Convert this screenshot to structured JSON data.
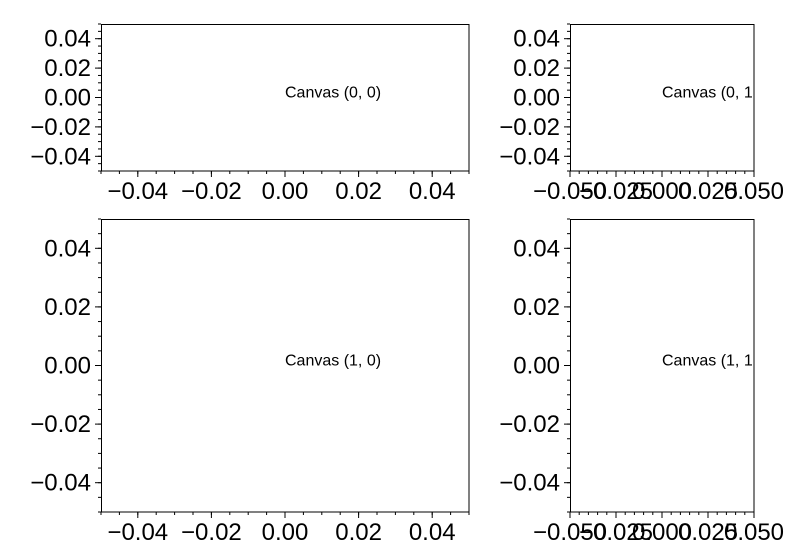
{
  "chart_data": [
    {
      "type": "scatter",
      "title": "",
      "xlabel": "",
      "ylabel": "",
      "xlim": [
        -0.05,
        0.05
      ],
      "ylim": [
        -0.05,
        0.05
      ],
      "grid": false,
      "series": [],
      "x_ticks": [
        -0.04,
        -0.02,
        0.0,
        0.02,
        0.04
      ],
      "x_tick_labels": [
        "−0.04",
        "−0.02",
        "0.00",
        "0.02",
        "0.04"
      ],
      "y_ticks": [
        -0.04,
        -0.02,
        0.0,
        0.02,
        0.04
      ],
      "y_tick_labels": [
        "−0.04",
        "−0.02",
        "0.00",
        "0.02",
        "0.04"
      ],
      "annotation": {
        "x": 0.0,
        "y": 0.0,
        "text": "Canvas (0, 0)"
      }
    },
    {
      "type": "scatter",
      "title": "",
      "xlabel": "",
      "ylabel": "",
      "xlim": [
        -0.05,
        0.05
      ],
      "ylim": [
        -0.05,
        0.05
      ],
      "grid": false,
      "series": [],
      "x_ticks": [
        -0.05,
        -0.025,
        0.0,
        0.025,
        0.05
      ],
      "x_tick_labels": [
        "−0.050",
        "−0.025",
        "0.000",
        "0.025",
        "0.050"
      ],
      "y_ticks": [
        -0.04,
        -0.02,
        0.0,
        0.02,
        0.04
      ],
      "y_tick_labels": [
        "−0.04",
        "−0.02",
        "0.00",
        "0.02",
        "0.04"
      ],
      "annotation": {
        "x": 0.0,
        "y": 0.0,
        "text": "Canvas (0, 1"
      }
    },
    {
      "type": "scatter",
      "title": "",
      "xlabel": "",
      "ylabel": "",
      "xlim": [
        -0.05,
        0.05
      ],
      "ylim": [
        -0.05,
        0.05
      ],
      "grid": false,
      "series": [],
      "x_ticks": [
        -0.04,
        -0.02,
        0.0,
        0.02,
        0.04
      ],
      "x_tick_labels": [
        "−0.04",
        "−0.02",
        "0.00",
        "0.02",
        "0.04"
      ],
      "y_ticks": [
        -0.04,
        -0.02,
        0.0,
        0.02,
        0.04
      ],
      "y_tick_labels": [
        "−0.04",
        "−0.02",
        "0.00",
        "0.02",
        "0.04"
      ],
      "annotation": {
        "x": 0.0,
        "y": 0.0,
        "text": "Canvas (1, 0)"
      }
    },
    {
      "type": "scatter",
      "title": "",
      "xlabel": "",
      "ylabel": "",
      "xlim": [
        -0.05,
        0.05
      ],
      "ylim": [
        -0.05,
        0.05
      ],
      "grid": false,
      "series": [],
      "x_ticks": [
        -0.05,
        -0.025,
        0.0,
        0.025,
        0.05
      ],
      "x_tick_labels": [
        "−0.050",
        "−0.025",
        "0.000",
        "0.025",
        "0.050"
      ],
      "y_ticks": [
        -0.04,
        -0.02,
        0.0,
        0.02,
        0.04
      ],
      "y_tick_labels": [
        "−0.04",
        "−0.02",
        "0.00",
        "0.02",
        "0.04"
      ],
      "annotation": {
        "x": 0.0,
        "y": 0.0,
        "text": "Canvas (1, 1"
      }
    }
  ]
}
